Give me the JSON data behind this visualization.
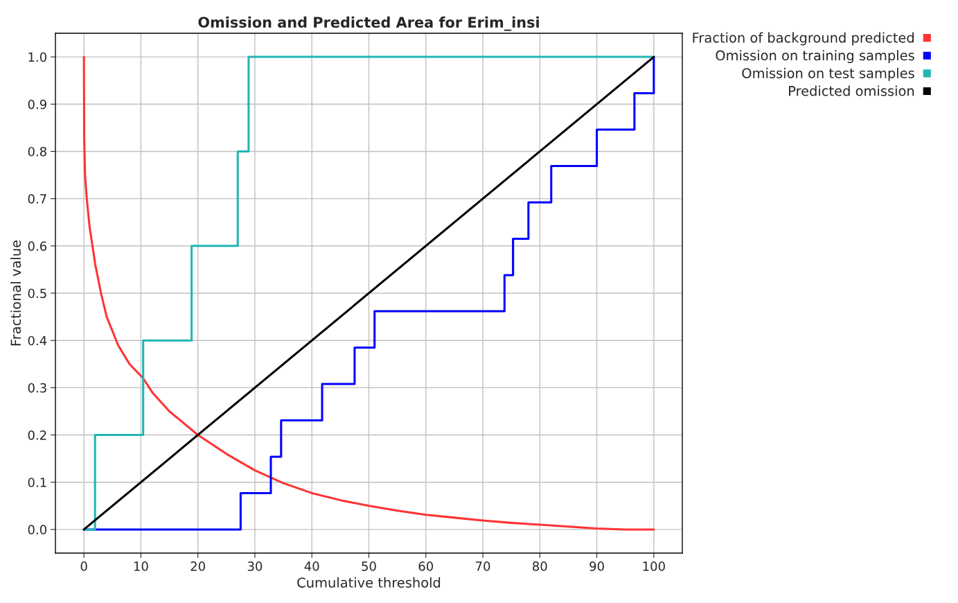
{
  "chart_data": {
    "type": "line",
    "title": "Omission and Predicted Area for Erim_insi",
    "xlabel": "Cumulative threshold",
    "ylabel": "Fractional value",
    "xlim": [
      -5,
      105
    ],
    "ylim": [
      -0.05,
      1.05
    ],
    "xticks": [
      0,
      10,
      20,
      30,
      40,
      50,
      60,
      70,
      80,
      90,
      100
    ],
    "yticks": [
      {
        "value": 0,
        "label": "0.0"
      },
      {
        "value": 0.1,
        "label": "0.1"
      },
      {
        "value": 0.2,
        "label": "0.2"
      },
      {
        "value": 0.3,
        "label": "0.3"
      },
      {
        "value": 0.4,
        "label": "0.4"
      },
      {
        "value": 0.5,
        "label": "0.5"
      },
      {
        "value": 0.6,
        "label": "0.6"
      },
      {
        "value": 0.7,
        "label": "0.7"
      },
      {
        "value": 0.8,
        "label": "0.8"
      },
      {
        "value": 0.9,
        "label": "0.9"
      },
      {
        "value": 1.0,
        "label": "1.0"
      }
    ],
    "grid": true,
    "legend": "top right",
    "marker": "none",
    "line_style": "solid",
    "series": [
      {
        "name": "Fraction of background predicted",
        "color": "#ff3333",
        "x": [
          0,
          0.05,
          0.2,
          0.5,
          1,
          2,
          3,
          4,
          5,
          6,
          8,
          10.4,
          12,
          15,
          20,
          25,
          30,
          35,
          40,
          45,
          50,
          55,
          60,
          65,
          70,
          75,
          80,
          85,
          90,
          95,
          100
        ],
        "values": [
          1.0,
          0.83,
          0.75,
          0.7,
          0.64,
          0.56,
          0.5,
          0.45,
          0.42,
          0.39,
          0.35,
          0.32,
          0.29,
          0.25,
          0.2,
          0.16,
          0.125,
          0.098,
          0.077,
          0.062,
          0.05,
          0.04,
          0.031,
          0.025,
          0.019,
          0.014,
          0.01,
          0.006,
          0.002,
          0.0,
          0.0
        ]
      },
      {
        "name": "Omission on training samples",
        "color": "#0000ff",
        "type": "step",
        "x": [
          0,
          27.5,
          32.8,
          34.6,
          41.8,
          47.5,
          51.0,
          73.8,
          75.3,
          78.0,
          82.0,
          90.0,
          96.6,
          100
        ],
        "values": [
          0,
          0.077,
          0.154,
          0.231,
          0.308,
          0.385,
          0.462,
          0.538,
          0.615,
          0.692,
          0.769,
          0.846,
          0.923,
          1.0
        ]
      },
      {
        "name": "Omission on test samples",
        "color": "#22b5b5",
        "type": "step",
        "x": [
          0,
          1.95,
          10.4,
          18.9,
          27.0,
          28.9,
          100
        ],
        "values": [
          0,
          0.2,
          0.4,
          0.6,
          0.8,
          1.0,
          1.0
        ]
      },
      {
        "name": "Predicted omission",
        "color": "#000000",
        "x": [
          0,
          100
        ],
        "values": [
          0,
          1
        ]
      }
    ]
  }
}
